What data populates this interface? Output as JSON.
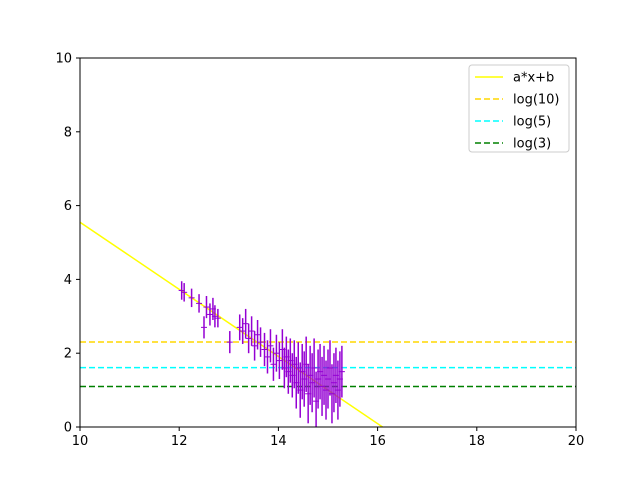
{
  "chart_data": {
    "type": "scatter",
    "title": "",
    "xlabel": "",
    "ylabel": "",
    "xlim": [
      10,
      20
    ],
    "ylim": [
      0,
      10
    ],
    "xticks": [
      10,
      12,
      14,
      16,
      18,
      20
    ],
    "yticks": [
      0,
      2,
      4,
      6,
      8,
      10
    ],
    "grid": false,
    "legend_position": "top-right",
    "fit_line": {
      "name": "a*x+b",
      "color": "#ffff00",
      "x": [
        10,
        16.1
      ],
      "y": [
        5.55,
        0
      ]
    },
    "hlines": [
      {
        "name": "log(10)",
        "y": 2.303,
        "color": "#ffd700",
        "style": "dashed"
      },
      {
        "name": "log(5)",
        "y": 1.609,
        "color": "#00ffff",
        "style": "dashed"
      },
      {
        "name": "log(3)",
        "y": 1.099,
        "color": "#008000",
        "style": "dashed"
      }
    ],
    "points_color": "#9400d3",
    "points": [
      [
        12.05,
        3.7,
        0.25
      ],
      [
        12.1,
        3.65,
        0.25
      ],
      [
        12.25,
        3.5,
        0.25
      ],
      [
        12.4,
        3.35,
        0.25
      ],
      [
        12.5,
        2.7,
        0.3
      ],
      [
        12.55,
        3.25,
        0.3
      ],
      [
        12.62,
        3.05,
        0.3
      ],
      [
        12.68,
        3.2,
        0.3
      ],
      [
        12.72,
        3.0,
        0.3
      ],
      [
        12.78,
        2.95,
        0.25
      ],
      [
        13.02,
        2.3,
        0.3
      ],
      [
        13.22,
        2.7,
        0.35
      ],
      [
        13.28,
        2.6,
        0.35
      ],
      [
        13.34,
        2.8,
        0.4
      ],
      [
        13.4,
        2.4,
        0.4
      ],
      [
        13.46,
        2.6,
        0.4
      ],
      [
        13.52,
        2.2,
        0.4
      ],
      [
        13.58,
        2.5,
        0.4
      ],
      [
        13.64,
        2.3,
        0.4
      ],
      [
        13.72,
        2.1,
        0.45
      ],
      [
        13.78,
        1.9,
        0.45
      ],
      [
        13.84,
        2.2,
        0.45
      ],
      [
        13.9,
        1.7,
        0.45
      ],
      [
        13.96,
        2.0,
        0.5
      ],
      [
        14.02,
        1.8,
        0.5
      ],
      [
        14.08,
        2.1,
        0.55
      ],
      [
        14.12,
        1.6,
        0.55
      ],
      [
        14.16,
        1.9,
        0.55
      ],
      [
        14.2,
        1.5,
        0.6
      ],
      [
        14.24,
        1.8,
        0.6
      ],
      [
        14.28,
        1.4,
        0.6
      ],
      [
        14.32,
        1.7,
        0.65
      ],
      [
        14.36,
        1.2,
        0.7
      ],
      [
        14.4,
        1.6,
        0.7
      ],
      [
        14.44,
        1.0,
        0.75
      ],
      [
        14.48,
        1.5,
        0.75
      ],
      [
        14.52,
        1.3,
        0.75
      ],
      [
        14.56,
        1.7,
        0.75
      ],
      [
        14.6,
        0.9,
        0.8
      ],
      [
        14.64,
        1.4,
        0.8
      ],
      [
        14.68,
        1.2,
        0.8
      ],
      [
        14.72,
        1.6,
        0.8
      ],
      [
        14.76,
        0.7,
        0.8
      ],
      [
        14.8,
        1.3,
        0.8
      ],
      [
        14.84,
        1.5,
        0.75
      ],
      [
        14.88,
        1.1,
        0.8
      ],
      [
        14.92,
        1.4,
        0.8
      ],
      [
        14.96,
        1.0,
        0.8
      ],
      [
        15.0,
        1.3,
        0.8
      ],
      [
        15.04,
        1.6,
        0.75
      ],
      [
        15.08,
        0.9,
        0.8
      ],
      [
        15.12,
        1.2,
        0.8
      ],
      [
        15.16,
        1.4,
        0.75
      ],
      [
        15.2,
        1.0,
        0.8
      ],
      [
        15.24,
        1.3,
        0.75
      ],
      [
        15.28,
        1.5,
        0.7
      ]
    ]
  }
}
